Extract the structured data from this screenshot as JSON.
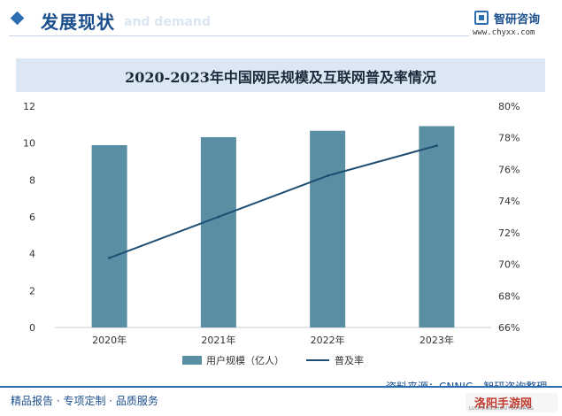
{
  "header": {
    "title": "发展现状",
    "ghost_text": "and demand"
  },
  "logo": {
    "name": "智研咨询",
    "url": "www.chyxx.com"
  },
  "chart_data": {
    "type": "bar",
    "title": "2020-2023年中国网民规模及互联网普及率情况",
    "categories": [
      "2020年",
      "2021年",
      "2022年",
      "2023年"
    ],
    "series": [
      {
        "name": "用户规模（亿人）",
        "type": "bar",
        "axis": "left",
        "values": [
          9.89,
          10.32,
          10.67,
          10.92
        ],
        "color": "#5a8fa3"
      },
      {
        "name": "普及率",
        "type": "line",
        "axis": "right",
        "values": [
          70.4,
          73.0,
          75.6,
          77.5
        ],
        "color": "#1e4e73"
      }
    ],
    "y_left": {
      "min": 0,
      "max": 12,
      "ticks": [
        "0",
        "2",
        "4",
        "6",
        "8",
        "10",
        "12"
      ]
    },
    "y_right": {
      "min": 66,
      "max": 80,
      "ticks": [
        "66%",
        "68%",
        "70%",
        "72%",
        "74%",
        "76%",
        "78%",
        "80%"
      ]
    },
    "legend_position": "bottom",
    "grid": false
  },
  "source": "资料来源：CNNIC，智研咨询整理",
  "footer": {
    "left_text": "精品报告 · 专项定制 · 品质服务"
  },
  "badge": {
    "title": "洛阳手游网",
    "subtitle": "LUOYANGSHOUYOUWANG"
  }
}
